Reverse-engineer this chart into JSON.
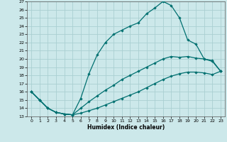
{
  "xlabel": "Humidex (Indice chaleur)",
  "background_color": "#cce8ea",
  "grid_color": "#aacfd2",
  "line_color": "#007070",
  "xlim": [
    -0.5,
    23.5
  ],
  "ylim": [
    13,
    27
  ],
  "xticks": [
    0,
    1,
    2,
    3,
    4,
    5,
    6,
    7,
    8,
    9,
    10,
    11,
    12,
    13,
    14,
    15,
    16,
    17,
    18,
    19,
    20,
    21,
    22,
    23
  ],
  "yticks": [
    13,
    14,
    15,
    16,
    17,
    18,
    19,
    20,
    21,
    22,
    23,
    24,
    25,
    26,
    27
  ],
  "line1_x": [
    0,
    1,
    2,
    3,
    4,
    5,
    6,
    7,
    8,
    9,
    10,
    11,
    12,
    13,
    14,
    15,
    16,
    17,
    18,
    19,
    20,
    21,
    22,
    23
  ],
  "line1_y": [
    16,
    15,
    14,
    13.5,
    13.3,
    13.2,
    15.2,
    18.2,
    20.5,
    22.0,
    23.0,
    23.5,
    24.0,
    24.4,
    25.5,
    26.2,
    27.0,
    26.5,
    25.0,
    22.3,
    21.8,
    20.0,
    19.8,
    18.5
  ],
  "line2_x": [
    0,
    1,
    2,
    3,
    4,
    5,
    6,
    7,
    8,
    9,
    10,
    11,
    12,
    13,
    14,
    15,
    16,
    17,
    18,
    19,
    20,
    21,
    22,
    23
  ],
  "line2_y": [
    16,
    15,
    14,
    13.5,
    13.3,
    13.2,
    14.0,
    14.8,
    15.5,
    16.2,
    16.8,
    17.5,
    18.0,
    18.5,
    19.0,
    19.5,
    20.0,
    20.3,
    20.2,
    20.3,
    20.1,
    20.0,
    19.7,
    18.5
  ],
  "line3_x": [
    0,
    1,
    2,
    3,
    4,
    5,
    6,
    7,
    8,
    9,
    10,
    11,
    12,
    13,
    14,
    15,
    16,
    17,
    18,
    19,
    20,
    21,
    22,
    23
  ],
  "line3_y": [
    16,
    15,
    14,
    13.5,
    13.3,
    13.2,
    13.4,
    13.7,
    14.0,
    14.4,
    14.8,
    15.2,
    15.6,
    16.0,
    16.5,
    17.0,
    17.5,
    17.9,
    18.2,
    18.4,
    18.4,
    18.3,
    18.1,
    18.5
  ]
}
